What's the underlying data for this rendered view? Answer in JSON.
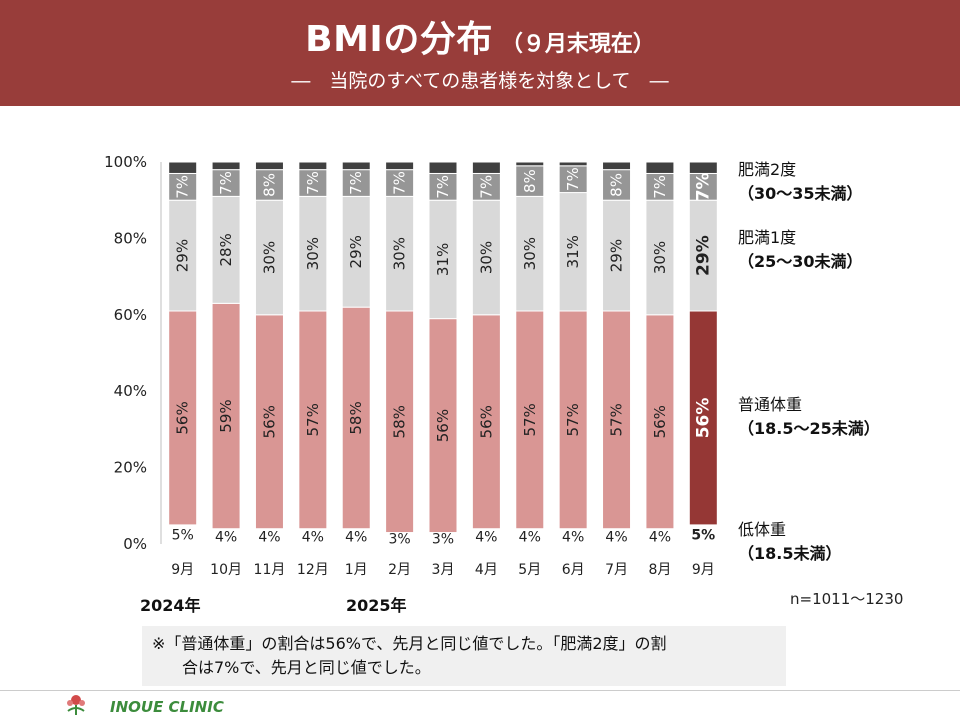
{
  "header": {
    "title": "BMIの分布",
    "title_suffix": "（９月末現在）",
    "subtitle": "―　当院のすべての患者様を対象として　―"
  },
  "colors": {
    "header_bg": "#983d3a",
    "low": "#ffffff",
    "normal": "#d99694",
    "normal_highlight": "#953735",
    "obese1": "#d9d9d9",
    "obese2": "#969696",
    "top": "#404040"
  },
  "chart_data": {
    "type": "bar",
    "stacked": true,
    "ylim": [
      0,
      100
    ],
    "yticks": [
      "0%",
      "20%",
      "40%",
      "60%",
      "80%",
      "100%"
    ],
    "categories": [
      "9月",
      "10月",
      "11月",
      "12月",
      "1月",
      "2月",
      "3月",
      "4月",
      "5月",
      "6月",
      "7月",
      "8月",
      "9月"
    ],
    "year_labels": [
      {
        "label": "2024年",
        "category_index": 0
      },
      {
        "label": "2025年",
        "category_index": 4
      }
    ],
    "highlight_index": 12,
    "series": [
      {
        "name": "低体重",
        "values": [
          5,
          4,
          4,
          4,
          4,
          3,
          3,
          4,
          4,
          4,
          4,
          4,
          5
        ],
        "labels": [
          "5%",
          "4%",
          "4%",
          "4%",
          "4%",
          "3%",
          "3%",
          "4%",
          "4%",
          "4%",
          "4%",
          "4%",
          "5%"
        ]
      },
      {
        "name": "普通体重",
        "values": [
          56,
          59,
          56,
          57,
          58,
          58,
          56,
          56,
          57,
          57,
          57,
          56,
          56
        ],
        "labels": [
          "56%",
          "59%",
          "56%",
          "57%",
          "58%",
          "58%",
          "56%",
          "56%",
          "57%",
          "57%",
          "57%",
          "56%",
          "56%"
        ]
      },
      {
        "name": "肥満1度",
        "values": [
          29,
          28,
          30,
          30,
          29,
          30,
          31,
          30,
          30,
          31,
          29,
          30,
          29
        ],
        "labels": [
          "29%",
          "28%",
          "30%",
          "30%",
          "29%",
          "30%",
          "31%",
          "30%",
          "30%",
          "31%",
          "29%",
          "30%",
          "29%"
        ]
      },
      {
        "name": "肥満2度",
        "values": [
          7,
          7,
          8,
          7,
          7,
          7,
          7,
          7,
          8,
          7,
          8,
          7,
          7
        ],
        "labels": [
          "7%",
          "7%",
          "8%",
          "7%",
          "7%",
          "7%",
          "7%",
          "7%",
          "8%",
          "7%",
          "8%",
          "7%",
          "7%"
        ]
      },
      {
        "name": "",
        "values": [
          3,
          2,
          2,
          2,
          2,
          2,
          3,
          3,
          1,
          1,
          2,
          3,
          3
        ],
        "labels": []
      }
    ]
  },
  "legend": [
    {
      "name": "肥満2度",
      "range": "（30～35未満）"
    },
    {
      "name": "肥満1度",
      "range": "（25～30未満）"
    },
    {
      "name": "普通体重",
      "range": "（18.5～25未満）"
    },
    {
      "name": "低体重",
      "range": "（18.5未満）"
    }
  ],
  "sample_size": "n=1011～1230",
  "note": {
    "line1": "※「普通体重」の割合は56%で、先月と同じ値でした。「肥満2度」の割",
    "line2": "合は7%で、先月と同じ値でした。"
  },
  "footer": {
    "logo_text": "INOUE CLINIC"
  }
}
